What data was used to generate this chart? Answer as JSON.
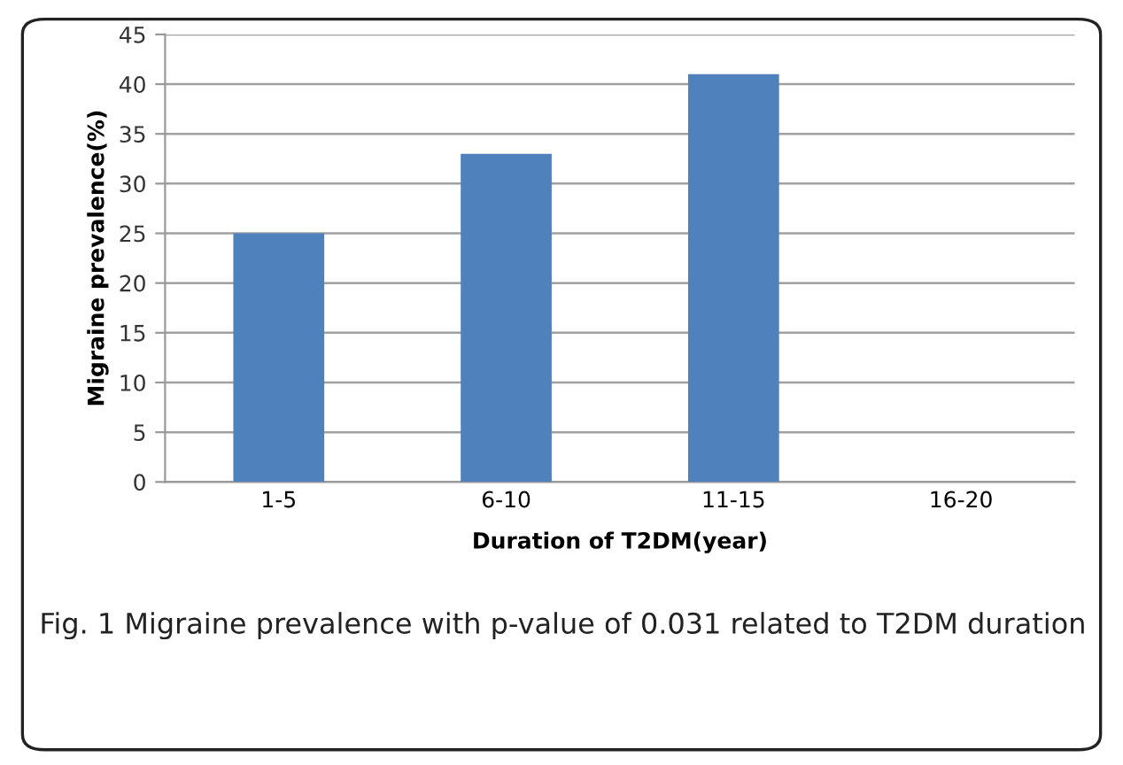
{
  "chart_data": {
    "type": "bar",
    "categories": [
      "1-5",
      "6-10",
      "11-15",
      "16-20"
    ],
    "values": [
      25,
      33,
      41,
      0
    ],
    "color": "#4f81bd",
    "xlabel": "Duration of T2DM(year)",
    "ylabel": "Migraine prevalence(%)",
    "ylim": [
      0,
      45
    ],
    "yticks": [
      0,
      5,
      10,
      15,
      20,
      25,
      30,
      35,
      40,
      45
    ],
    "grid": "y",
    "legend": false,
    "annotations": [
      "Fig. 1 Migraine prevalence with p-value of 0.031 related to T2DM duration"
    ]
  }
}
